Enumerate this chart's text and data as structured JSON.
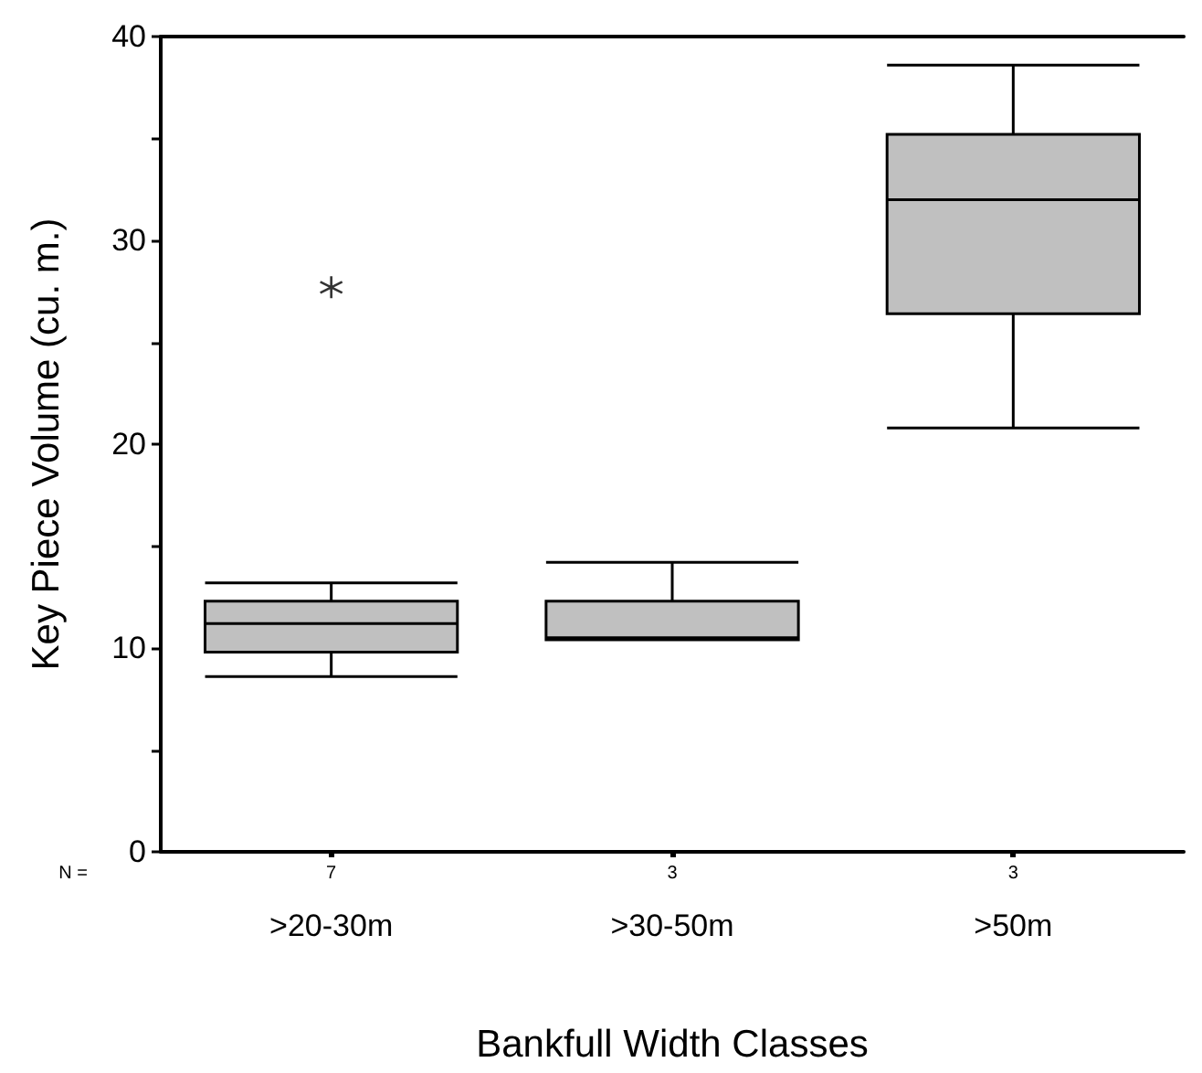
{
  "chart_data": {
    "type": "box",
    "xlabel": "Bankfull Width Classes",
    "ylabel": "Key Piece Volume (cu. m.)",
    "categories": [
      ">20-30m",
      ">30-50m",
      ">50m"
    ],
    "boxes": [
      {
        "low": 8.6,
        "q1": 9.8,
        "median": 11.2,
        "q3": 12.3,
        "high": 13.2,
        "outliers": [
          27.7
        ]
      },
      {
        "low": 10.4,
        "q1": 10.4,
        "median": 10.5,
        "q3": 12.3,
        "high": 14.2
      },
      {
        "low": 20.8,
        "q1": 26.4,
        "median": 32.0,
        "q3": 35.2,
        "high": 38.6
      }
    ],
    "color": "#c0c0c0",
    "ylim": [
      0,
      40
    ],
    "yticks": [
      0,
      {
        "value": 5,
        "label": null
      },
      10,
      {
        "value": 15,
        "label": null
      },
      20,
      {
        "value": 25,
        "label": null
      },
      30,
      {
        "value": 35,
        "label": null
      },
      40
    ],
    "grid": false,
    "legend": false,
    "annotations": [
      "N =",
      "7",
      "3",
      "3"
    ]
  }
}
